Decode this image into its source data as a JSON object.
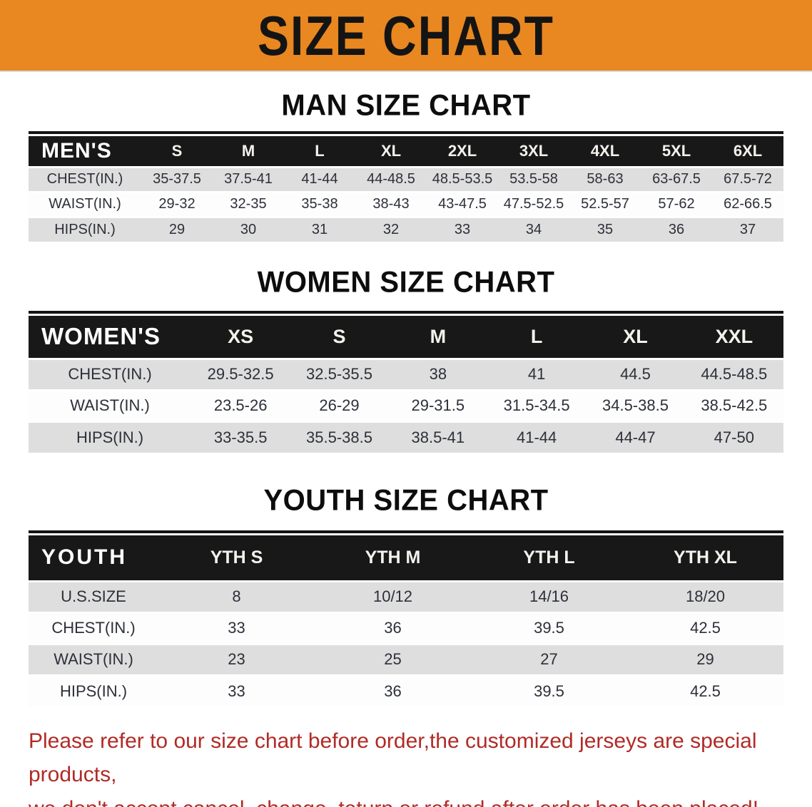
{
  "banner": {
    "title": "SIZE CHART"
  },
  "sections": [
    {
      "title": "MAN SIZE CHART",
      "table": {
        "label": "MEN'S",
        "columns": [
          "S",
          "M",
          "L",
          "XL",
          "2XL",
          "3XL",
          "4XL",
          "5XL",
          "6XL"
        ],
        "rows": [
          {
            "label": "CHEST(IN.)",
            "values": [
              "35-37.5",
              "37.5-41",
              "41-44",
              "44-48.5",
              "48.5-53.5",
              "53.5-58",
              "58-63",
              "63-67.5",
              "67.5-72"
            ]
          },
          {
            "label": "WAIST(IN.)",
            "values": [
              "29-32",
              "32-35",
              "35-38",
              "38-43",
              "43-47.5",
              "47.5-52.5",
              "52.5-57",
              "57-62",
              "62-66.5"
            ]
          },
          {
            "label": "HIPS(IN.)",
            "values": [
              "29",
              "30",
              "31",
              "32",
              "33",
              "34",
              "35",
              "36",
              "37"
            ]
          }
        ]
      }
    },
    {
      "title": "WOMEN SIZE CHART",
      "table": {
        "label": "WOMEN'S",
        "columns": [
          "XS",
          "S",
          "M",
          "L",
          "XL",
          "XXL"
        ],
        "rows": [
          {
            "label": "CHEST(IN.)",
            "values": [
              "29.5-32.5",
              "32.5-35.5",
              "38",
              "41",
              "44.5",
              "44.5-48.5"
            ]
          },
          {
            "label": "WAIST(IN.)",
            "values": [
              "23.5-26",
              "26-29",
              "29-31.5",
              "31.5-34.5",
              "34.5-38.5",
              "38.5-42.5"
            ]
          },
          {
            "label": "HIPS(IN.)",
            "values": [
              "33-35.5",
              "35.5-38.5",
              "38.5-41",
              "41-44",
              "44-47",
              "47-50"
            ]
          }
        ]
      }
    },
    {
      "title": "YOUTH SIZE CHART",
      "table": {
        "label": "YOUTH",
        "columns": [
          "YTH S",
          "YTH M",
          "YTH L",
          "YTH XL"
        ],
        "rows": [
          {
            "label": "U.S.SIZE",
            "values": [
              "8",
              "10/12",
              "14/16",
              "18/20"
            ]
          },
          {
            "label": "CHEST(IN.)",
            "values": [
              "33",
              "36",
              "39.5",
              "42.5"
            ]
          },
          {
            "label": "WAIST(IN.)",
            "values": [
              "23",
              "25",
              "27",
              "29"
            ]
          },
          {
            "label": "HIPS(IN.)",
            "values": [
              "33",
              "36",
              "39.5",
              "42.5"
            ]
          }
        ]
      }
    }
  ],
  "footer": {
    "line1": "Please refer to our size chart before order,the customized jerseys are special products,",
    "line2": "we don't accept cancel, change, teturn or refund after order has been placed!"
  },
  "colors": {
    "banner_bg": "#E98720",
    "table_header_bg": "#181818",
    "row_stripe_gray": "#DEDEDE",
    "footer_text_red": "#B02B27"
  }
}
